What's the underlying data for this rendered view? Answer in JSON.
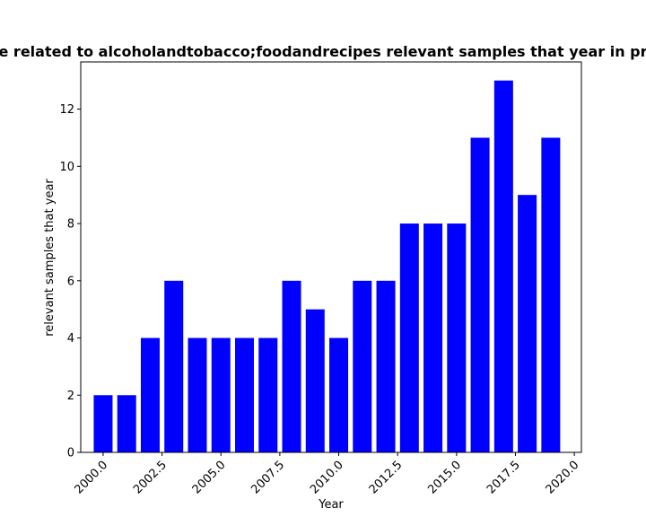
{
  "chart_data": {
    "type": "bar",
    "title": "e related to alcoholandtobacco;foodandrecipes relevant samples that year in pr",
    "xlabel": "Year",
    "ylabel": "relevant samples that year",
    "x": [
      2000,
      2001,
      2002,
      2003,
      2004,
      2005,
      2006,
      2007,
      2008,
      2009,
      2010,
      2011,
      2012,
      2013,
      2014,
      2015,
      2016,
      2017,
      2018,
      2019
    ],
    "values": [
      2,
      2,
      4,
      6,
      4,
      4,
      4,
      4,
      6,
      5,
      4,
      6,
      6,
      8,
      8,
      8,
      11,
      13,
      9,
      11
    ],
    "xlim": [
      1999.05,
      2020.3
    ],
    "ylim": [
      0,
      13.65
    ],
    "xticks": [
      2000.0,
      2002.5,
      2005.0,
      2007.5,
      2010.0,
      2012.5,
      2015.0,
      2017.5,
      2020.0
    ],
    "xtick_labels": [
      "2000.0",
      "2002.5",
      "2005.0",
      "2007.5",
      "2010.0",
      "2012.5",
      "2015.0",
      "2017.5",
      "2020.0"
    ],
    "yticks": [
      0,
      2,
      4,
      6,
      8,
      10,
      12
    ],
    "ytick_labels": [
      "0",
      "2",
      "4",
      "6",
      "8",
      "10",
      "12"
    ],
    "bar_width": 0.8,
    "bar_color": "#0000ff",
    "grid": false,
    "legend": "none"
  }
}
